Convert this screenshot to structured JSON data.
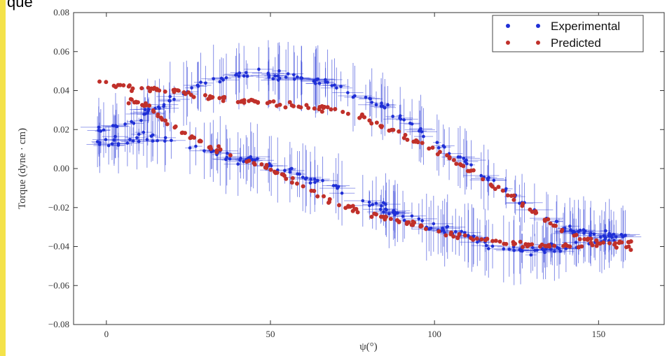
{
  "page": {
    "top_fragment_text": "que"
  },
  "chart_data": {
    "type": "scatter",
    "xlabel": "ψ(°)",
    "ylabel": "Torque (dyne · cm)",
    "xlim": [
      -10,
      170
    ],
    "ylim": [
      -0.08,
      0.08
    ],
    "xticks": [
      0,
      50,
      100,
      150
    ],
    "yticks": [
      -0.08,
      -0.06,
      -0.04,
      -0.02,
      0.0,
      0.02,
      0.04,
      0.06,
      0.08
    ],
    "yticklabels": [
      "−0.08",
      "−0.06",
      "−0.04",
      "−0.02",
      "0.00",
      "0.02",
      "0.04",
      "0.06",
      "0.08"
    ],
    "grid": false,
    "legend": {
      "placement": "top-right"
    },
    "series": [
      {
        "name": "Experimental",
        "color": "#1f2fd6",
        "marker": "circle",
        "error_bars": true,
        "upper_branch": {
          "x": [
            -3,
            5,
            12,
            20,
            30,
            40,
            50,
            60,
            70,
            80,
            90,
            100,
            110,
            120,
            130,
            140,
            150,
            160
          ],
          "y": [
            0.019,
            0.022,
            0.028,
            0.036,
            0.044,
            0.048,
            0.048,
            0.047,
            0.043,
            0.036,
            0.026,
            0.015,
            0.003,
            -0.01,
            -0.022,
            -0.031,
            -0.035,
            -0.034
          ]
        },
        "lower_branch": {
          "x": [
            -3,
            5,
            12,
            20,
            30,
            40,
            50,
            60,
            70,
            80,
            90,
            100,
            110,
            120,
            130,
            140,
            150,
            160
          ],
          "y": [
            0.012,
            0.015,
            0.016,
            0.014,
            0.009,
            0.005,
            0.002,
            -0.004,
            -0.01,
            -0.017,
            -0.024,
            -0.03,
            -0.035,
            -0.04,
            -0.042,
            -0.041,
            -0.038,
            -0.033
          ]
        }
      },
      {
        "name": "Predicted",
        "color": "#c0302a",
        "marker": "circle",
        "error_bars": false,
        "upper_branch": {
          "x": [
            -3,
            5,
            12,
            20,
            30,
            40,
            50,
            60,
            70,
            80,
            90,
            100,
            110,
            120,
            130,
            140,
            150,
            160
          ],
          "y": [
            0.044,
            0.042,
            0.041,
            0.04,
            0.037,
            0.035,
            0.034,
            0.032,
            0.03,
            0.025,
            0.017,
            0.009,
            0.0,
            -0.011,
            -0.022,
            -0.033,
            -0.038,
            -0.041
          ]
        },
        "lower_branch": {
          "x": [
            5,
            12,
            20,
            30,
            40,
            50,
            60,
            70,
            80,
            90,
            100,
            110,
            120,
            130,
            140,
            150,
            160
          ],
          "y": [
            0.036,
            0.032,
            0.022,
            0.012,
            0.006,
            0.0,
            -0.009,
            -0.018,
            -0.023,
            -0.027,
            -0.032,
            -0.036,
            -0.038,
            -0.04,
            -0.04,
            -0.039,
            -0.038
          ]
        }
      }
    ]
  }
}
